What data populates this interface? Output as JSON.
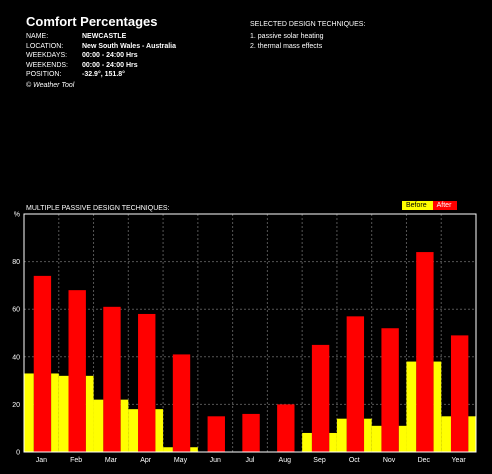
{
  "header": {
    "title": "Comfort Percentages",
    "fields": [
      {
        "label": "NAME:",
        "value": "NEWCASTLE"
      },
      {
        "label": "LOCATION:",
        "value": "New South Wales - Australia"
      },
      {
        "label": "WEEKDAYS:",
        "value": "00:00 - 24:00 Hrs"
      },
      {
        "label": "WEEKENDS:",
        "value": "00:00 - 24:00 Hrs"
      },
      {
        "label": "POSITION:",
        "value": "-32.9°, 151.8°"
      }
    ],
    "credit": "© Weather Tool"
  },
  "techniques": {
    "heading": "SELECTED DESIGN TECHNIQUES:",
    "items": [
      "1. passive solar heating",
      "2. thermal mass effects"
    ]
  },
  "colors": {
    "before": "#ffff00",
    "after": "#ff0000",
    "grid": "#555555",
    "axis": "#ffffff"
  },
  "chart_data": {
    "type": "bar",
    "title": "MULTIPLE PASSIVE DESIGN TECHNIQUES:",
    "ylabel": "%",
    "ylim": [
      0,
      100
    ],
    "yticks": [
      0,
      20,
      40,
      60,
      80
    ],
    "categories": [
      "Jan",
      "Feb",
      "Mar",
      "Apr",
      "May",
      "Jun",
      "Jul",
      "Aug",
      "Sep",
      "Oct",
      "Nov",
      "Dec",
      "Year"
    ],
    "series": [
      {
        "name": "Before",
        "values": [
          33,
          32,
          22,
          18,
          2,
          0,
          0,
          0,
          8,
          14,
          11,
          38,
          15
        ]
      },
      {
        "name": "After",
        "values": [
          74,
          68,
          61,
          58,
          41,
          15,
          16,
          20,
          45,
          57,
          52,
          84,
          49
        ]
      }
    ],
    "grid": true,
    "legend_position": "top-right"
  }
}
